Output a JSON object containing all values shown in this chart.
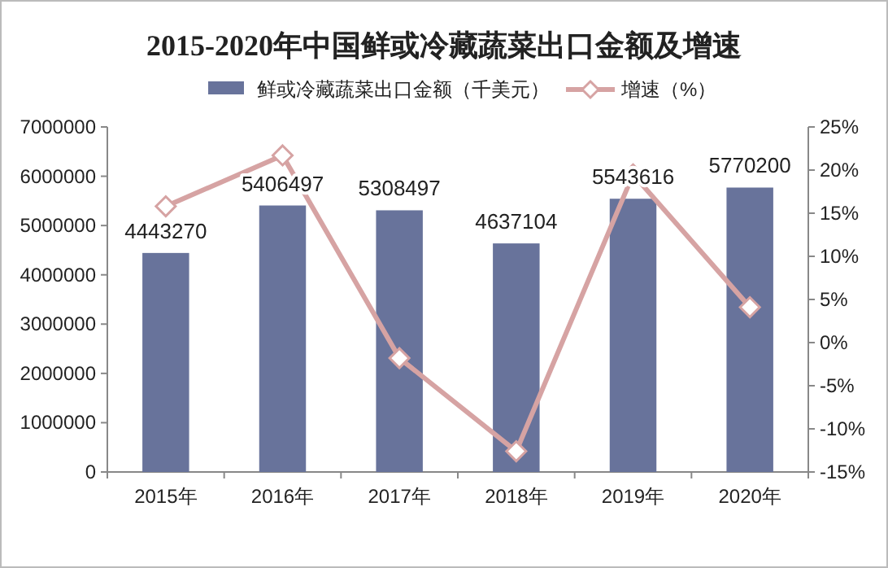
{
  "chart_data": {
    "type": "bar",
    "title": "2015-2020年中国鲜或冷藏蔬菜出口金额及增速",
    "categories": [
      "2015年",
      "2016年",
      "2017年",
      "2018年",
      "2019年",
      "2020年"
    ],
    "series": [
      {
        "name": "鲜或冷藏蔬菜出口金额（千美元）",
        "color": "#68739b",
        "values": [
          4443270,
          5406497,
          5308497,
          4637104,
          5543616,
          5770200
        ],
        "value_labels": [
          "4443270",
          "5406497",
          "5308497",
          "4637104",
          "5543616",
          "5770200"
        ]
      },
      {
        "name": "增速（%）",
        "type": "line",
        "axis": "y2",
        "color": "#d6a3a3",
        "marker": "diamond",
        "values": [
          15.8,
          21.7,
          -1.8,
          -12.6,
          19.5,
          4.1
        ]
      }
    ],
    "ylim": [
      0,
      7000000
    ],
    "yticks": [
      0,
      1000000,
      2000000,
      3000000,
      4000000,
      5000000,
      6000000,
      7000000
    ],
    "y2lim": [
      -15,
      25
    ],
    "y2ticks": [
      {
        "value": -15,
        "label": "-15%"
      },
      {
        "value": -10,
        "label": "-10%"
      },
      {
        "value": -5,
        "label": "-5%"
      },
      {
        "value": 0,
        "label": "0%"
      },
      {
        "value": 5,
        "label": "5%"
      },
      {
        "value": 10,
        "label": "10%"
      },
      {
        "value": 15,
        "label": "15%"
      },
      {
        "value": 20,
        "label": "20%"
      },
      {
        "value": 25,
        "label": "25%"
      }
    ],
    "grid": false,
    "legend": "top"
  }
}
